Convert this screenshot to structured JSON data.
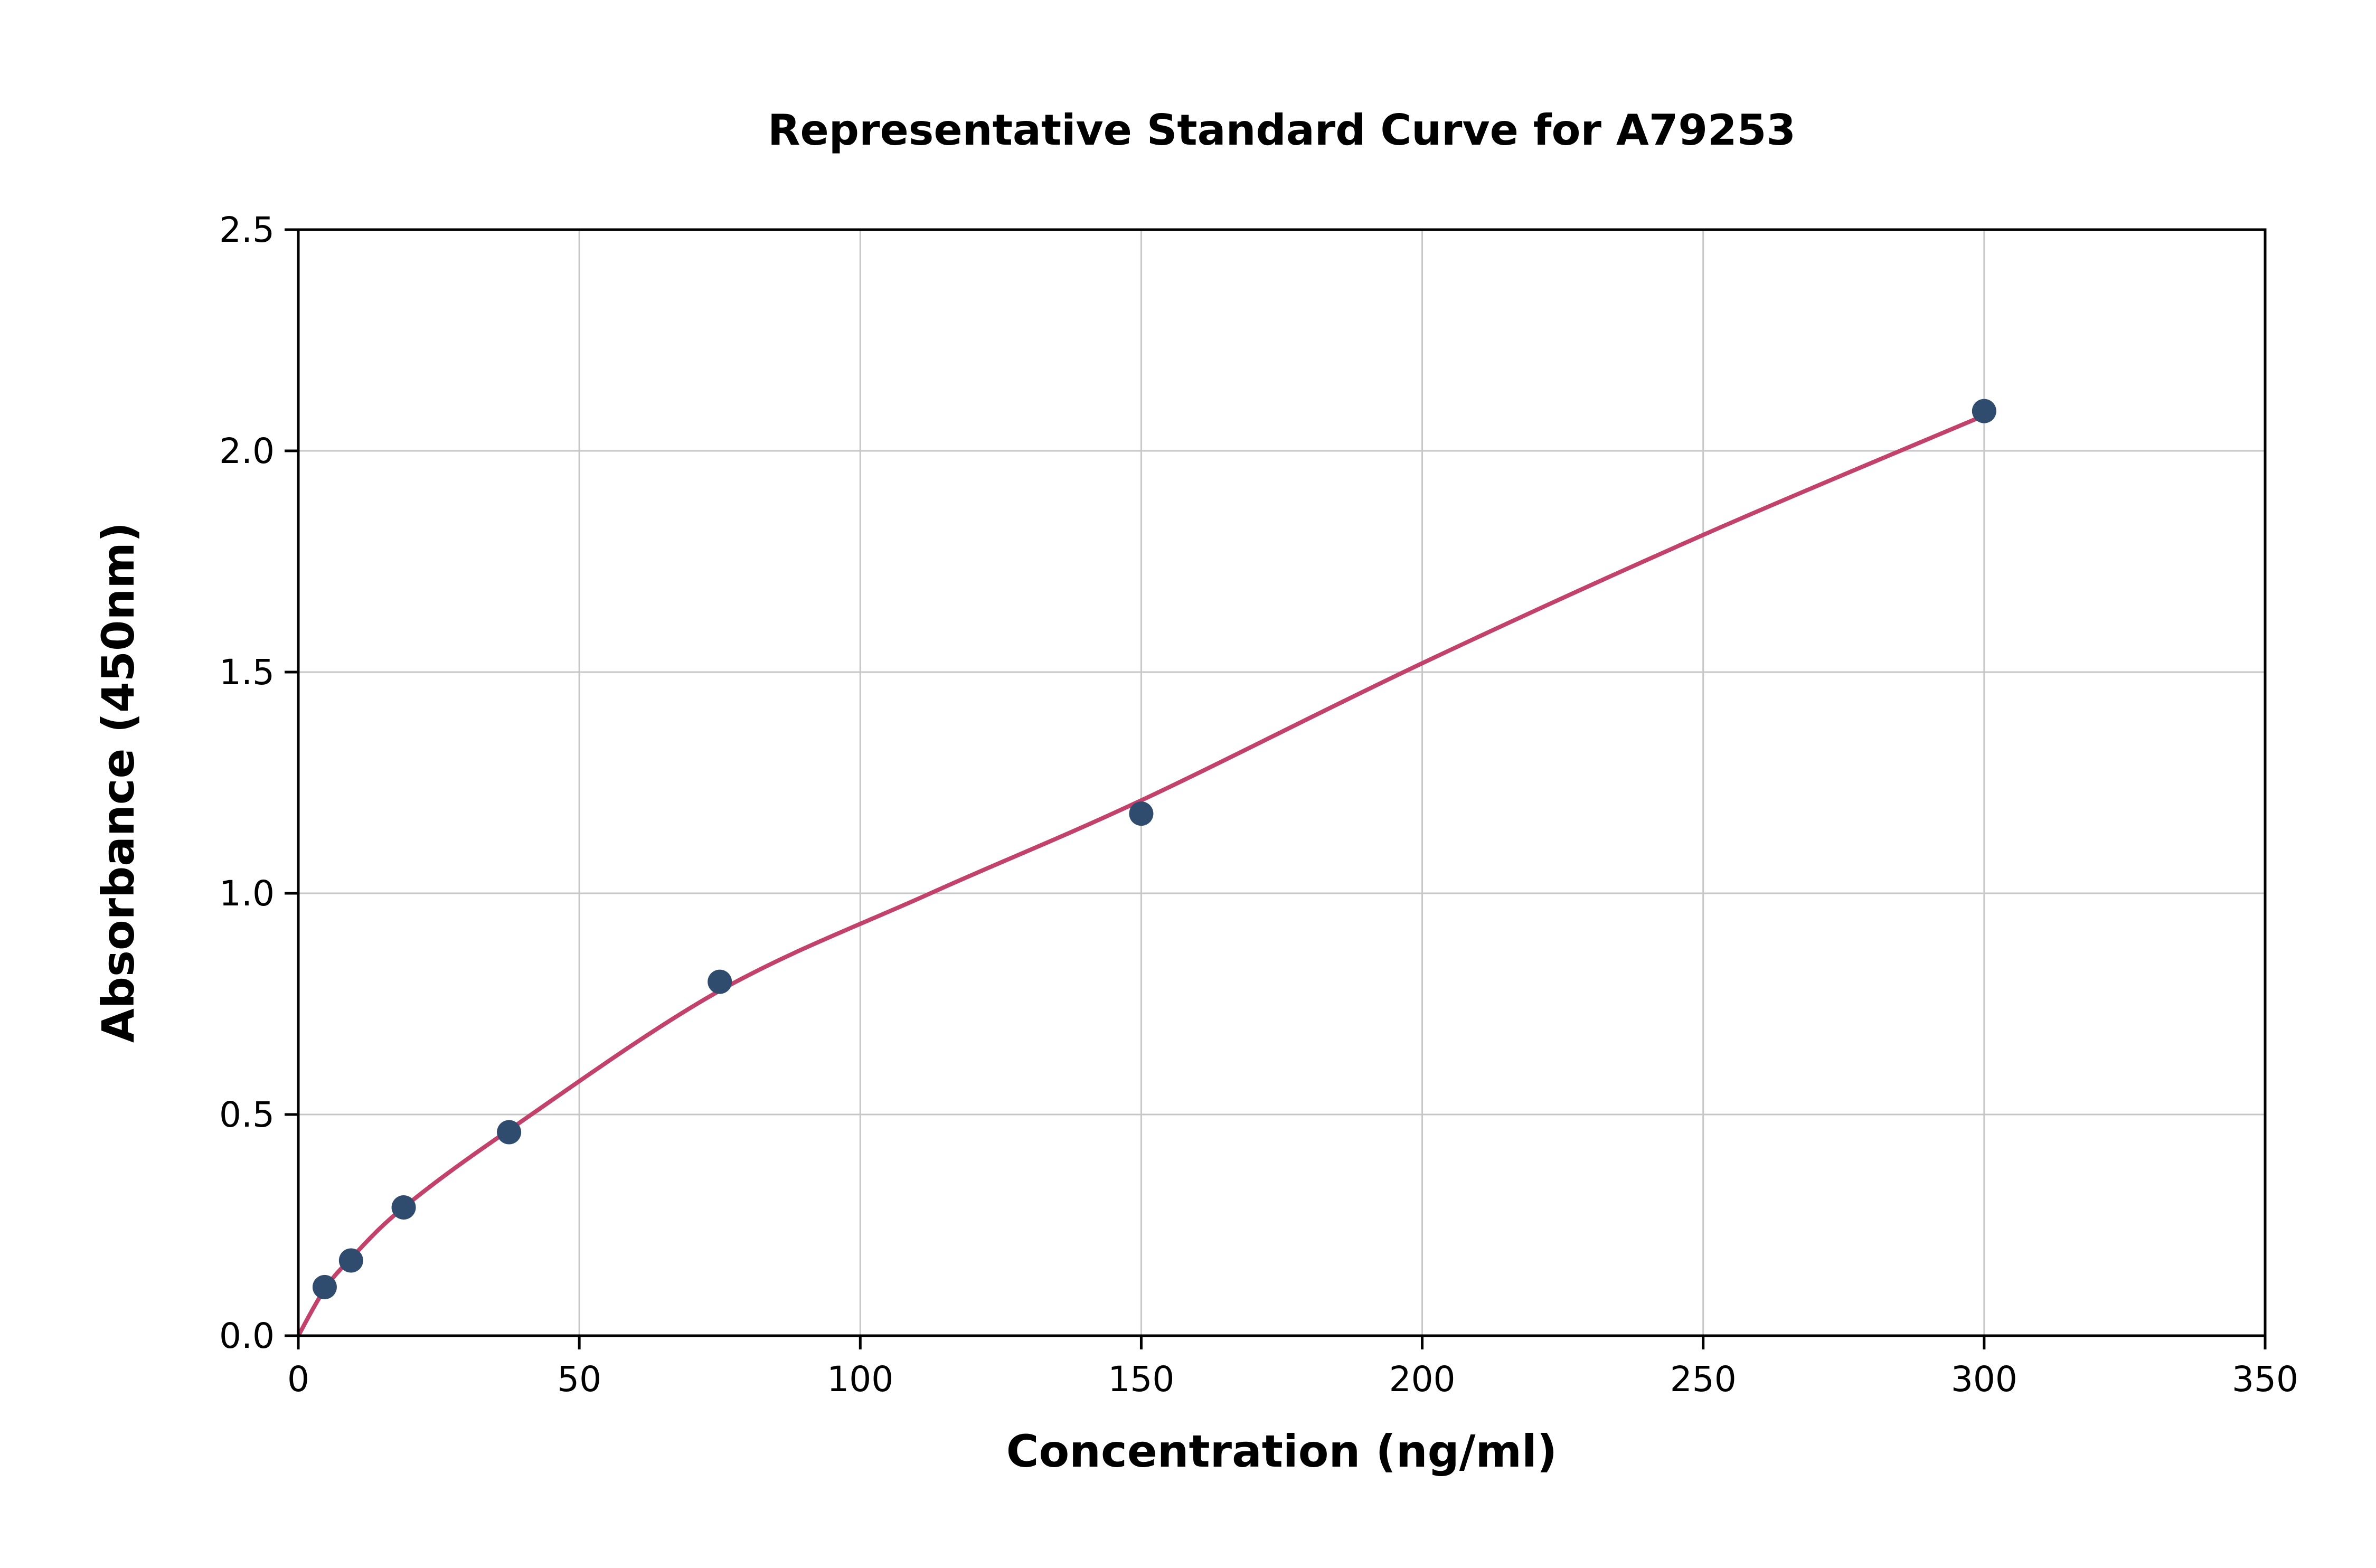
{
  "chart_data": {
    "type": "scatter",
    "title": "Representative Standard Curve for A79253",
    "xlabel": "Concentration (ng/ml)",
    "ylabel": "Absorbance (450nm)",
    "xlim": [
      0,
      350
    ],
    "ylim": [
      0,
      2.5
    ],
    "xticks": [
      0,
      50,
      100,
      150,
      200,
      250,
      300,
      350
    ],
    "xtick_labels": [
      "0",
      "50",
      "100",
      "150",
      "200",
      "250",
      "300",
      "350"
    ],
    "yticks": [
      0.0,
      0.5,
      1.0,
      1.5,
      2.0,
      2.5
    ],
    "ytick_labels": [
      "0.0",
      "0.5",
      "1.0",
      "1.5",
      "2.0",
      "2.5"
    ],
    "grid": true,
    "legend": "none",
    "points": [
      [
        4.69,
        0.11
      ],
      [
        9.38,
        0.17
      ],
      [
        18.75,
        0.29
      ],
      [
        37.5,
        0.46
      ],
      [
        75,
        0.8
      ],
      [
        150,
        1.18
      ],
      [
        300,
        2.09
      ]
    ],
    "fit_curve": [
      [
        0,
        0.0
      ],
      [
        4.69,
        0.105
      ],
      [
        9.38,
        0.175
      ],
      [
        18.75,
        0.29
      ],
      [
        37.5,
        0.465
      ],
      [
        75,
        0.78
      ],
      [
        112.5,
        1.0
      ],
      [
        150,
        1.21
      ],
      [
        200,
        1.52
      ],
      [
        250,
        1.81
      ],
      [
        300,
        2.08
      ]
    ],
    "colors": {
      "point": "#2f4b6e",
      "line": "#c2426b",
      "grid": "#c7c7c7",
      "axis": "#000000",
      "text": "#000000"
    }
  }
}
